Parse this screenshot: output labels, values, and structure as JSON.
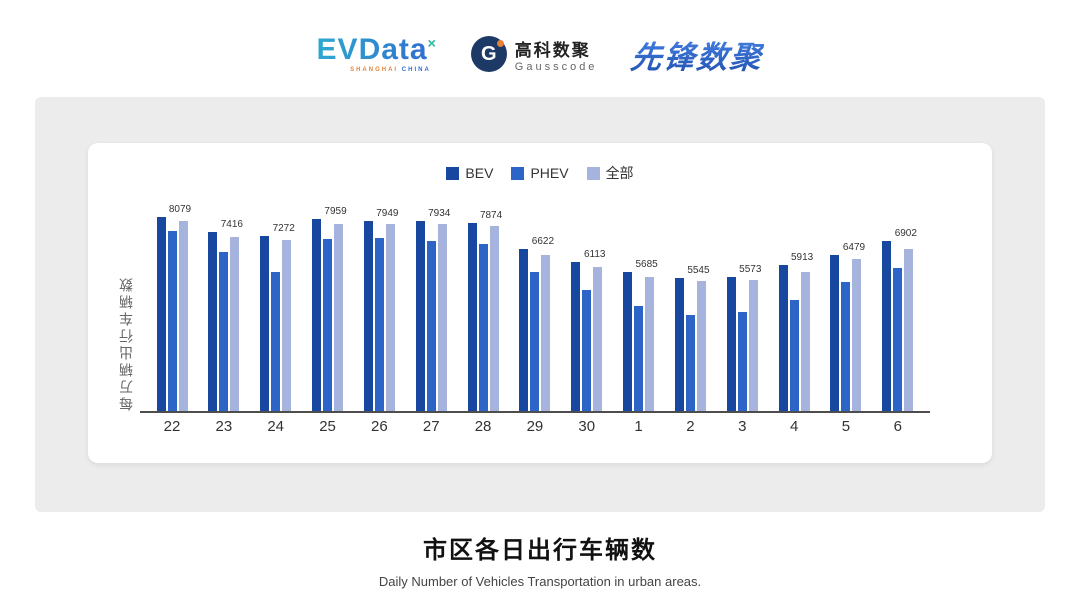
{
  "header": {
    "evdata": {
      "name": "EVData",
      "superscript": "×",
      "subtext_orange": "SHANGHAI",
      "subtext_blue": "CHINA"
    },
    "gausscode": {
      "initial": "G",
      "cn": "高科数聚",
      "en": "Gausscode"
    },
    "xianfeng": {
      "text": "先锋数聚"
    }
  },
  "chart_data": {
    "type": "bar",
    "title": "市区各日出行车辆数",
    "subtitle": "Daily Number of Vehicles Transportation in urban areas.",
    "ylabel": "每万辆出行车辆数",
    "xlabel": "",
    "categories": [
      "22",
      "23",
      "24",
      "25",
      "26",
      "27",
      "28",
      "29",
      "30",
      "1",
      "2",
      "3",
      "4",
      "5",
      "6"
    ],
    "series": [
      {
        "name": "BEV",
        "color": "#17479E",
        "values": [
          8230,
          7600,
          7450,
          8150,
          8100,
          8100,
          8000,
          6900,
          6350,
          5900,
          5650,
          5700,
          6200,
          6650,
          7250
        ]
      },
      {
        "name": "PHEV",
        "color": "#2D64C8",
        "values": [
          7650,
          6750,
          5900,
          7300,
          7350,
          7250,
          7100,
          5900,
          5150,
          4450,
          4100,
          4200,
          4700,
          5500,
          6100
        ]
      },
      {
        "name": "全部",
        "color": "#A6B3DC",
        "values": [
          8079,
          7416,
          7272,
          7959,
          7949,
          7934,
          7874,
          6622,
          6113,
          5685,
          5545,
          5573,
          5913,
          6479,
          6902
        ]
      }
    ],
    "value_labels": [
      8079,
      7416,
      7272,
      7959,
      7949,
      7934,
      7874,
      6622,
      6113,
      5685,
      5545,
      5573,
      5913,
      6479,
      6902
    ],
    "labeled_series": "全部",
    "ylim": [
      0,
      8700
    ],
    "grid": false,
    "legend_position": "top-center"
  }
}
